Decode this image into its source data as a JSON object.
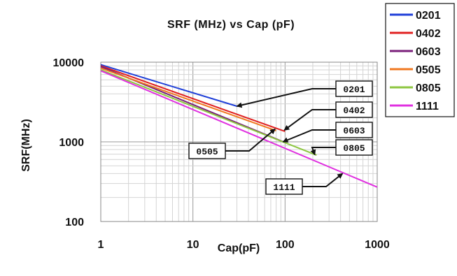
{
  "chart_data": {
    "type": "line",
    "title": "SRF (MHz) vs Cap (pF)",
    "xlabel": "Cap(pF)",
    "ylabel": "SRF(MHz)",
    "xscale": "log",
    "yscale": "log",
    "xlim": [
      1,
      1000
    ],
    "ylim": [
      100,
      10000
    ],
    "xticks": [
      "1",
      "10",
      "100",
      "1000"
    ],
    "yticks": [
      "100",
      "1000",
      "10000"
    ],
    "grid": "minor+major",
    "legend_position": "top-right (outside plot)",
    "series": [
      {
        "name": "0201",
        "color": "#1f3fd8",
        "x": [
          1,
          30
        ],
        "y": [
          9300,
          2800
        ]
      },
      {
        "name": "0402",
        "color": "#e02020",
        "x": [
          1,
          100
        ],
        "y": [
          9000,
          1350
        ]
      },
      {
        "name": "0603",
        "color": "#7a1f7a",
        "x": [
          1,
          100
        ],
        "y": [
          8800,
          980
        ]
      },
      {
        "name": "0505",
        "color": "#f07820",
        "x": [
          1,
          80
        ],
        "y": [
          8400,
          1380
        ]
      },
      {
        "name": "0805",
        "color": "#8cc63f",
        "x": [
          1,
          220
        ],
        "y": [
          8000,
          680
        ]
      },
      {
        "name": "1111",
        "color": "#e030e0",
        "x": [
          1,
          1000
        ],
        "y": [
          7800,
          270
        ]
      }
    ],
    "annotations": [
      {
        "label": "0201",
        "target_x": 30,
        "target_y": 2800
      },
      {
        "label": "0402",
        "target_x": 98,
        "target_y": 1400
      },
      {
        "label": "0603",
        "target_x": 95,
        "target_y": 1000
      },
      {
        "label": "0805",
        "target_x": 210,
        "target_y": 690
      },
      {
        "label": "0505",
        "target_x": 78,
        "target_y": 1450
      },
      {
        "label": "1111",
        "target_x": 420,
        "target_y": 400
      }
    ]
  }
}
